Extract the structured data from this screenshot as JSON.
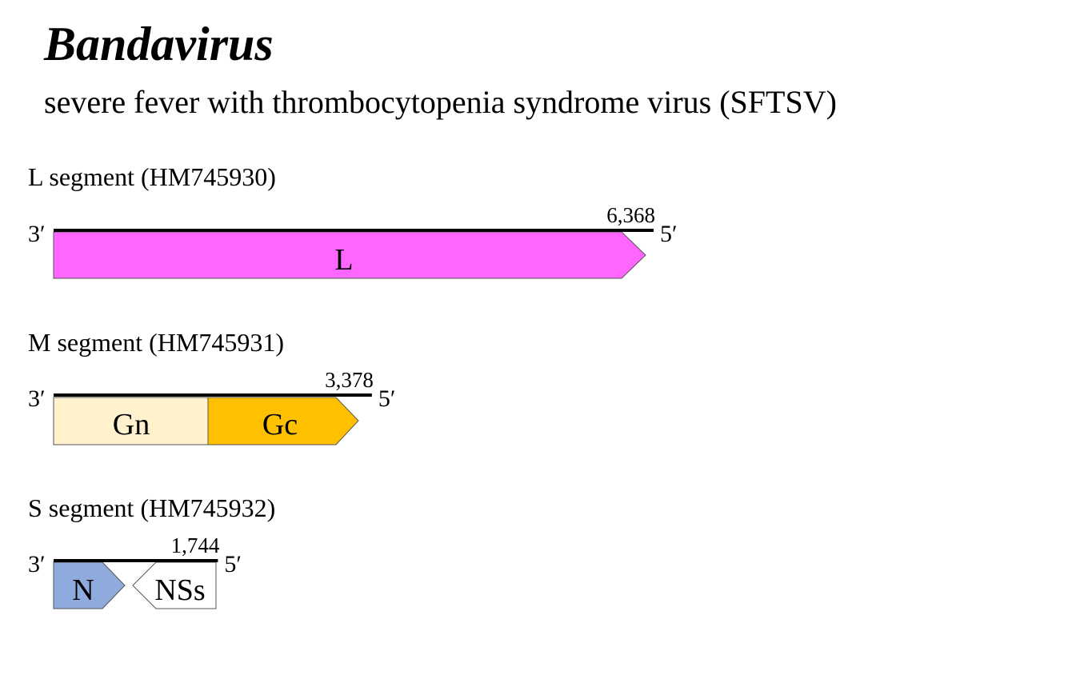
{
  "header": {
    "title": "Bandavirus",
    "subtitle": "severe fever with thrombocytopenia syndrome virus (SFTSV)"
  },
  "segments": [
    {
      "label": "L segment (HM745930)",
      "end_left": "3′",
      "end_right": "5′",
      "length": {
        "value": 6368,
        "label": "6,368"
      },
      "genes": [
        {
          "label": "L"
        }
      ]
    },
    {
      "label": "M segment (HM745931)",
      "end_left": "3′",
      "end_right": "5′",
      "length": {
        "value": 3378,
        "label": "3,378"
      },
      "genes": [
        {
          "label": "Gn"
        },
        {
          "label": "Gc"
        }
      ]
    },
    {
      "label": "S segment (HM745932)",
      "end_left": "3′",
      "end_right": "5′",
      "length": {
        "value": 1744,
        "label": "1,744"
      },
      "genes": [
        {
          "label": "N"
        },
        {
          "label": "NSs"
        }
      ]
    }
  ]
}
